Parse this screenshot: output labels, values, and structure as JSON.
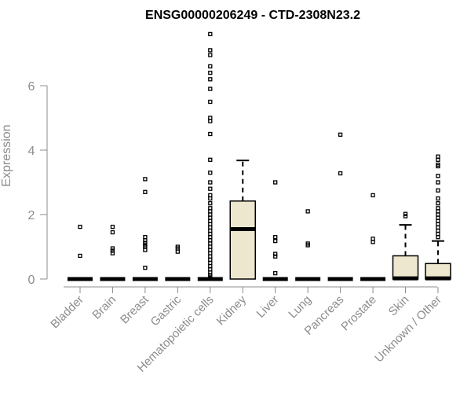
{
  "chart_data": {
    "type": "box",
    "title": "ENSG00000206249 - CTD-2308N23.2",
    "ylabel": "Expression",
    "xlabel": "",
    "ylim": [
      0,
      7.9
    ],
    "yticks": [
      0,
      2,
      4,
      6
    ],
    "categories": [
      "Bladder",
      "Brain",
      "Breast",
      "Gastric",
      "Hematopoietic cells",
      "Kidney",
      "Liver",
      "Lung",
      "Pancreas",
      "Prostate",
      "Skin",
      "Unknown / Other"
    ],
    "box_fill": "#ede7cf",
    "axis_color": "#8c8c8c",
    "boxes": [
      {
        "q1": 0,
        "median": 0,
        "q3": 0,
        "whisker_low": 0,
        "whisker_high": 0,
        "outliers": [
          0.72,
          1.62
        ]
      },
      {
        "q1": 0,
        "median": 0,
        "q3": 0,
        "whisker_low": 0,
        "whisker_high": 0,
        "outliers": [
          0.8,
          0.88,
          0.95,
          1.45,
          1.62
        ]
      },
      {
        "q1": 0,
        "median": 0,
        "q3": 0,
        "whisker_low": 0,
        "whisker_high": 0,
        "outliers": [
          0.35,
          0.9,
          1.0,
          1.05,
          1.12,
          1.2,
          1.3,
          2.7,
          3.1
        ]
      },
      {
        "q1": 0,
        "median": 0,
        "q3": 0,
        "whisker_low": 0,
        "whisker_high": 0,
        "outliers": [
          0.85,
          0.95,
          1.0
        ]
      },
      {
        "q1": 0,
        "median": 0,
        "q3": 0,
        "whisker_low": 0,
        "whisker_high": 0,
        "outliers": [
          0.05,
          0.12,
          0.2,
          0.3,
          0.4,
          0.5,
          0.6,
          0.7,
          0.8,
          0.9,
          1.0,
          1.1,
          1.2,
          1.3,
          1.4,
          1.5,
          1.6,
          1.7,
          1.8,
          1.9,
          2.0,
          2.1,
          2.2,
          2.35,
          2.5,
          2.6,
          2.8,
          3.0,
          3.3,
          3.7,
          4.5,
          4.9,
          5.0,
          5.5,
          5.9,
          6.2,
          6.4,
          6.6,
          6.95,
          7.1,
          7.6
        ]
      },
      {
        "q1": 0,
        "median": 1.55,
        "q3": 2.42,
        "whisker_low": 0,
        "whisker_high": 3.68,
        "outliers": []
      },
      {
        "q1": 0,
        "median": 0,
        "q3": 0,
        "whisker_low": 0,
        "whisker_high": 0,
        "outliers": [
          0.18,
          0.7,
          0.78,
          1.18,
          1.3,
          3.0
        ]
      },
      {
        "q1": 0,
        "median": 0,
        "q3": 0,
        "whisker_low": 0,
        "whisker_high": 0,
        "outliers": [
          1.05,
          1.1,
          2.1
        ]
      },
      {
        "q1": 0,
        "median": 0,
        "q3": 0,
        "whisker_low": 0,
        "whisker_high": 0,
        "outliers": [
          3.28,
          4.48
        ]
      },
      {
        "q1": 0,
        "median": 0,
        "q3": 0,
        "whisker_low": 0,
        "whisker_high": 0,
        "outliers": [
          1.15,
          1.25,
          2.6
        ]
      },
      {
        "q1": 0,
        "median": 0.02,
        "q3": 0.72,
        "whisker_low": 0,
        "whisker_high": 1.68,
        "outliers": [
          1.95,
          2.02
        ]
      },
      {
        "q1": 0,
        "median": 0.02,
        "q3": 0.48,
        "whisker_low": 0,
        "whisker_high": 1.18,
        "outliers": [
          1.3,
          1.4,
          1.5,
          1.6,
          1.7,
          1.8,
          1.9,
          2.0,
          2.1,
          2.2,
          2.35,
          2.5,
          2.75,
          3.0,
          3.2,
          3.5,
          3.55,
          3.7,
          3.8
        ]
      }
    ]
  }
}
